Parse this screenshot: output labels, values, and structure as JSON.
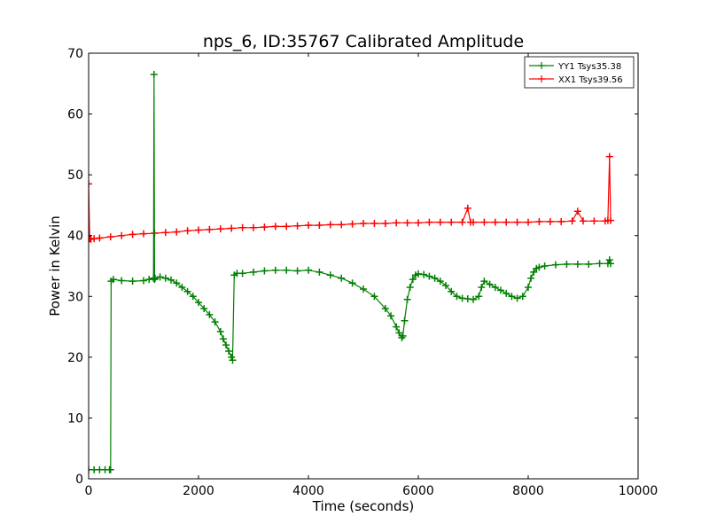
{
  "chart_data": {
    "type": "line",
    "title": "nps_6, ID:35767 Calibrated Amplitude",
    "xlabel": "Time (seconds)",
    "ylabel": "Power in Kelvin",
    "xlim": [
      0,
      10000
    ],
    "ylim": [
      0,
      70
    ],
    "x_ticks": [
      0,
      2000,
      4000,
      6000,
      8000,
      10000
    ],
    "y_ticks": [
      0,
      10,
      20,
      30,
      40,
      50,
      60,
      70
    ],
    "grid": false,
    "legend_position": "top-right",
    "series": [
      {
        "name": "YY1 Tsys35.38",
        "color": "#008000",
        "marker": "+",
        "x": [
          0,
          100,
          200,
          300,
          380,
          400,
          410,
          450,
          600,
          800,
          1000,
          1100,
          1180,
          1190,
          1200,
          1210,
          1300,
          1400,
          1500,
          1600,
          1700,
          1800,
          1900,
          2000,
          2100,
          2200,
          2300,
          2400,
          2450,
          2500,
          2550,
          2600,
          2620,
          2650,
          2700,
          2800,
          3000,
          3200,
          3400,
          3600,
          3800,
          4000,
          4200,
          4400,
          4600,
          4800,
          5000,
          5200,
          5400,
          5500,
          5600,
          5650,
          5700,
          5720,
          5750,
          5800,
          5850,
          5900,
          5950,
          6000,
          6100,
          6200,
          6300,
          6400,
          6500,
          6600,
          6700,
          6800,
          6900,
          7000,
          7100,
          7150,
          7200,
          7300,
          7400,
          7500,
          7600,
          7700,
          7800,
          7900,
          8000,
          8050,
          8100,
          8150,
          8200,
          8300,
          8500,
          8700,
          8900,
          9100,
          9300,
          9450,
          9480,
          9500
        ],
        "y": [
          1.5,
          1.5,
          1.5,
          1.5,
          1.5,
          1.5,
          32.5,
          32.8,
          32.6,
          32.5,
          32.6,
          32.8,
          33.0,
          66.5,
          32.8,
          33.0,
          33.2,
          33.0,
          32.7,
          32.2,
          31.5,
          30.8,
          30.0,
          29.0,
          28.0,
          27.0,
          25.8,
          24.2,
          23.0,
          22.0,
          21.0,
          20.0,
          19.5,
          33.5,
          33.8,
          33.8,
          34.0,
          34.2,
          34.3,
          34.3,
          34.2,
          34.3,
          34.0,
          33.5,
          33.0,
          32.2,
          31.2,
          30.0,
          28.0,
          26.8,
          25.0,
          24.0,
          23.2,
          23.5,
          26.0,
          29.5,
          31.5,
          32.8,
          33.5,
          33.7,
          33.6,
          33.3,
          33.0,
          32.5,
          31.8,
          30.8,
          30.0,
          29.7,
          29.6,
          29.5,
          30.0,
          31.5,
          32.5,
          32.0,
          31.5,
          31.0,
          30.5,
          30.0,
          29.7,
          30.0,
          31.5,
          33.0,
          34.0,
          34.6,
          34.8,
          35.0,
          35.2,
          35.3,
          35.3,
          35.3,
          35.4,
          35.4,
          36.0,
          35.4
        ]
      },
      {
        "name": "XX1 Tsys39.56",
        "color": "#ff0000",
        "marker": "+",
        "x": [
          0,
          20,
          40,
          100,
          200,
          400,
          600,
          800,
          1000,
          1200,
          1400,
          1600,
          1800,
          2000,
          2200,
          2400,
          2600,
          2800,
          3000,
          3200,
          3400,
          3600,
          3800,
          4000,
          4200,
          4400,
          4600,
          4800,
          5000,
          5200,
          5400,
          5600,
          5800,
          6000,
          6200,
          6400,
          6600,
          6800,
          6900,
          6950,
          7000,
          7200,
          7400,
          7600,
          7800,
          8000,
          8200,
          8400,
          8600,
          8800,
          8900,
          9000,
          9200,
          9400,
          9450,
          9480,
          9500
        ],
        "y": [
          48.5,
          39.5,
          39.4,
          39.5,
          39.6,
          39.8,
          40.0,
          40.2,
          40.3,
          40.4,
          40.5,
          40.6,
          40.8,
          40.9,
          41.0,
          41.1,
          41.2,
          41.3,
          41.3,
          41.4,
          41.5,
          41.5,
          41.6,
          41.7,
          41.7,
          41.8,
          41.8,
          41.9,
          42.0,
          42.0,
          42.0,
          42.1,
          42.1,
          42.1,
          42.2,
          42.2,
          42.2,
          42.2,
          44.5,
          42.2,
          42.2,
          42.2,
          42.2,
          42.2,
          42.2,
          42.2,
          42.3,
          42.3,
          42.3,
          42.4,
          44.0,
          42.4,
          42.4,
          42.4,
          42.5,
          53.0,
          42.5
        ]
      }
    ]
  }
}
